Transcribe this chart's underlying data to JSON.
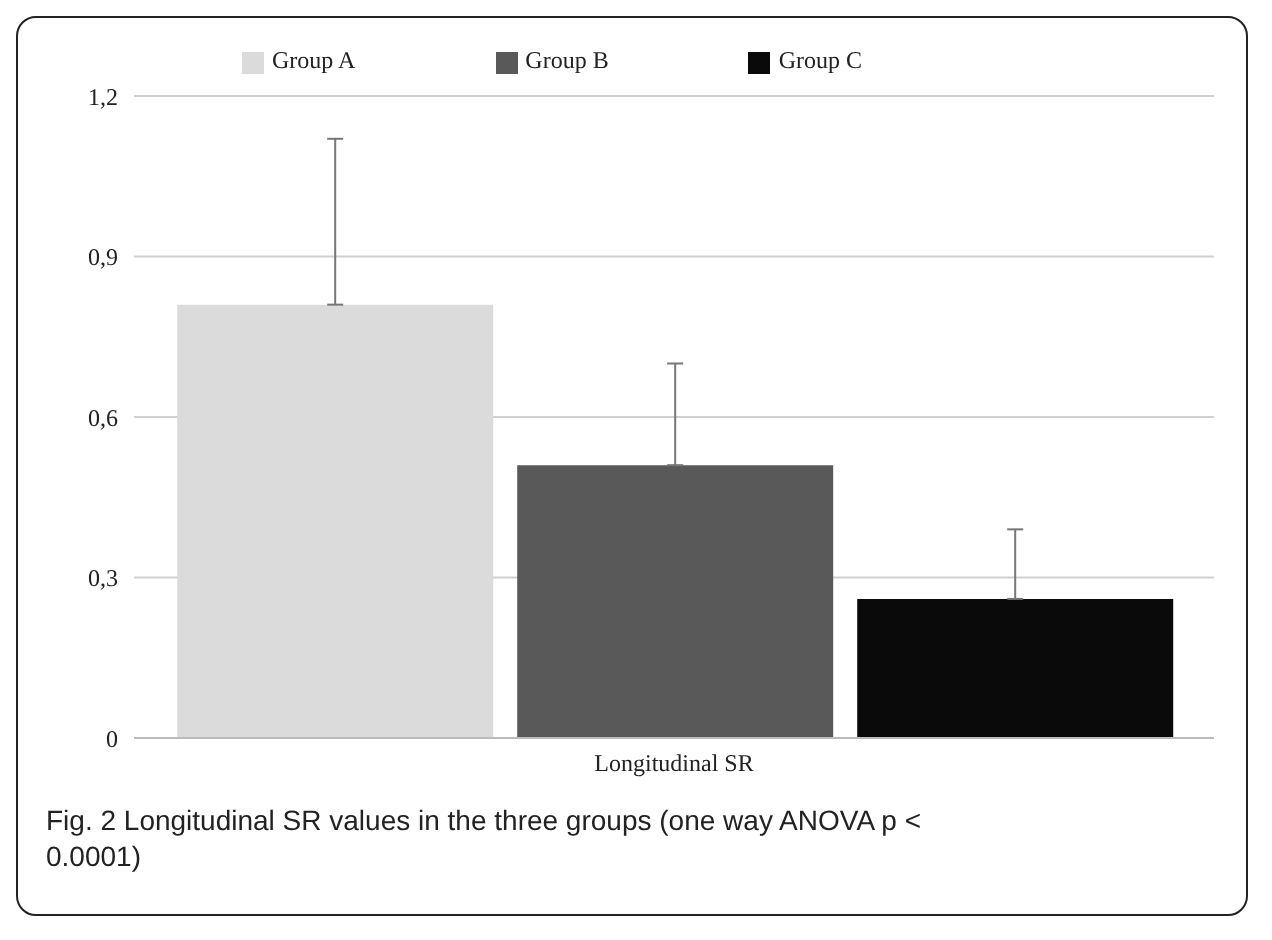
{
  "chart_data": {
    "type": "bar",
    "categories": [
      "Longitudinal SR"
    ],
    "series": [
      {
        "name": "Group A",
        "color": "#dbdbdb",
        "values": [
          0.81
        ],
        "errors": [
          [
            0.81,
            1.12
          ]
        ]
      },
      {
        "name": "Group B",
        "color": "#595959",
        "values": [
          0.51
        ],
        "errors": [
          [
            0.51,
            0.7
          ]
        ]
      },
      {
        "name": "Group C",
        "color": "#0a0a0a",
        "values": [
          0.26
        ],
        "errors": [
          [
            0.26,
            0.39
          ]
        ]
      }
    ],
    "ylim": [
      0,
      1.2
    ],
    "yticks": [
      0,
      {
        "value": 0.3,
        "label": "0,3"
      },
      {
        "value": 0.6,
        "label": "0,6"
      },
      {
        "value": 0.9,
        "label": "0,9"
      },
      {
        "value": 1.2,
        "label": "1,2"
      }
    ],
    "grid": "y",
    "legend": "top",
    "annotations": [
      "Fig. 2  Longitudinal SR values in the three groups (one way ANOVA p < 0.0001)"
    ]
  }
}
